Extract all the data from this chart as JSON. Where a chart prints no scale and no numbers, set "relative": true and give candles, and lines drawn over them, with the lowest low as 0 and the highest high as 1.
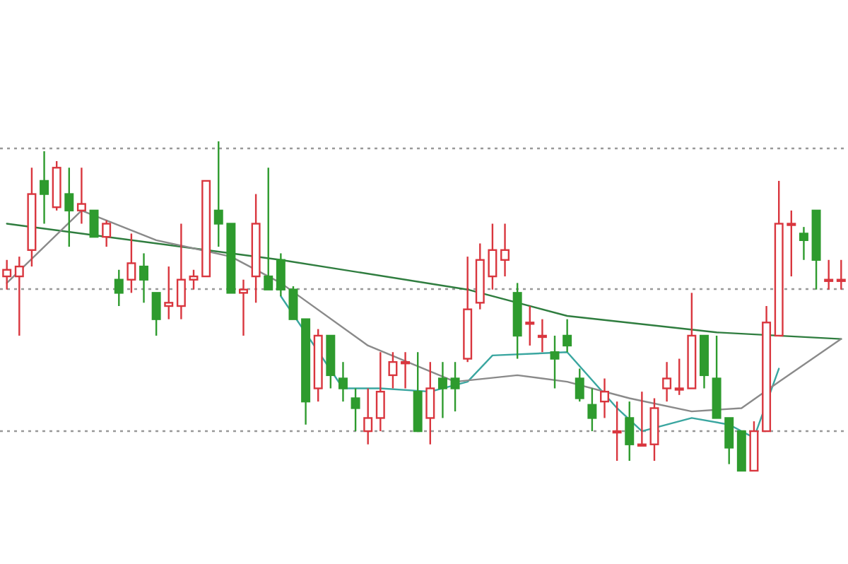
{
  "chart_data": {
    "type": "candlestick",
    "relative": true,
    "grid": true,
    "categories": [
      null,
      null,
      null,
      null,
      null,
      null,
      null,
      null,
      null,
      null,
      null,
      null,
      null,
      null,
      null,
      null,
      null,
      null,
      null,
      null,
      null,
      null,
      null,
      null,
      null,
      null,
      null,
      null,
      null,
      null,
      null,
      null,
      null,
      null,
      null,
      null,
      null,
      null,
      null,
      null,
      null,
      null,
      null,
      null,
      null,
      null,
      null,
      null,
      null,
      null,
      null,
      null,
      null,
      null,
      null,
      null,
      null,
      null,
      null,
      null,
      null,
      null,
      null,
      null,
      null,
      null,
      null,
      null
    ],
    "ohlc": [
      [
        0.59,
        0.64,
        0.55,
        0.61
      ],
      [
        0.59,
        0.65,
        0.41,
        0.62
      ],
      [
        0.67,
        0.92,
        0.62,
        0.84
      ],
      [
        0.88,
        0.97,
        0.75,
        0.84
      ],
      [
        0.8,
        0.94,
        0.79,
        0.92
      ],
      [
        0.84,
        0.92,
        0.68,
        0.79
      ],
      [
        0.79,
        0.92,
        0.75,
        0.81
      ],
      [
        0.79,
        0.79,
        0.71,
        0.71
      ],
      [
        0.71,
        0.76,
        0.68,
        0.75
      ],
      [
        0.58,
        0.61,
        0.5,
        0.54
      ],
      [
        0.58,
        0.72,
        0.54,
        0.63
      ],
      [
        0.62,
        0.66,
        0.51,
        0.58
      ],
      [
        0.54,
        0.54,
        0.41,
        0.46
      ],
      [
        0.5,
        0.62,
        0.46,
        0.51
      ],
      [
        0.5,
        0.75,
        0.46,
        0.58
      ],
      [
        0.58,
        0.61,
        0.55,
        0.59
      ],
      [
        0.59,
        0.88,
        0.59,
        0.88
      ],
      [
        0.79,
        1,
        0.68,
        0.75
      ],
      [
        0.75,
        0.75,
        0.54,
        0.54
      ],
      [
        0.54,
        0.58,
        0.41,
        0.55
      ],
      [
        0.59,
        0.84,
        0.51,
        0.75
      ],
      [
        0.59,
        0.92,
        0.55,
        0.55
      ],
      [
        0.64,
        0.66,
        0.53,
        0.55
      ],
      [
        0.55,
        0.56,
        0.46,
        0.46
      ],
      [
        0.46,
        0.46,
        0.14,
        0.21
      ],
      [
        0.25,
        0.43,
        0.21,
        0.41
      ],
      [
        0.41,
        0.41,
        0.25,
        0.29
      ],
      [
        0.28,
        0.33,
        0.21,
        0.25
      ],
      [
        0.22,
        0.25,
        0.12,
        0.19
      ],
      [
        0.12,
        0.25,
        0.08,
        0.16
      ],
      [
        0.16,
        0.36,
        0.12,
        0.24
      ],
      [
        0.29,
        0.36,
        0.25,
        0.33
      ],
      [
        0.33,
        0.36,
        0.25,
        0.33
      ],
      [
        0.24,
        0.36,
        0.12,
        0.12
      ],
      [
        0.16,
        0.33,
        0.08,
        0.25
      ],
      [
        0.28,
        0.33,
        0.16,
        0.25
      ],
      [
        0.28,
        0.33,
        0.18,
        0.25
      ],
      [
        0.34,
        0.65,
        0.33,
        0.49
      ],
      [
        0.51,
        0.69,
        0.49,
        0.64
      ],
      [
        0.59,
        0.75,
        0.55,
        0.67
      ],
      [
        0.64,
        0.75,
        0.59,
        0.67
      ],
      [
        0.54,
        0.57,
        0.34,
        0.41
      ],
      [
        0.45,
        0.5,
        0.38,
        0.45
      ],
      [
        0.41,
        0.46,
        0.36,
        0.41
      ],
      [
        0.36,
        0.41,
        0.25,
        0.34
      ],
      [
        0.41,
        0.46,
        0.36,
        0.38
      ],
      [
        0.28,
        0.31,
        0.21,
        0.22
      ],
      [
        0.2,
        0.25,
        0.12,
        0.16
      ],
      [
        0.21,
        0.28,
        0.16,
        0.24
      ],
      [
        0.12,
        0.21,
        0.03,
        0.12
      ],
      [
        0.16,
        0.21,
        0.03,
        0.08
      ],
      [
        0.08,
        0.24,
        0.08,
        0.08
      ],
      [
        0.08,
        0.22,
        0.03,
        0.19
      ],
      [
        0.25,
        0.33,
        0.21,
        0.28
      ],
      [
        0.25,
        0.34,
        0.23,
        0.25
      ],
      [
        0.25,
        0.54,
        0.25,
        0.41
      ],
      [
        0.41,
        0.41,
        0.25,
        0.29
      ],
      [
        0.28,
        0.41,
        0.16,
        0.16
      ],
      [
        0.16,
        0.16,
        0.02,
        0.07
      ],
      [
        0.12,
        0.12,
        0,
        0
      ],
      [
        0,
        0.15,
        0,
        0.12
      ],
      [
        0.12,
        0.5,
        0.12,
        0.45
      ],
      [
        0.41,
        0.88,
        0.41,
        0.75
      ],
      [
        0.75,
        0.79,
        0.59,
        0.75
      ],
      [
        0.72,
        0.74,
        0.64,
        0.7
      ],
      [
        0.79,
        0.79,
        0.55,
        0.64
      ],
      [
        0.58,
        0.64,
        0.55,
        0.58
      ],
      [
        0.58,
        0.64,
        0.55,
        0.58
      ]
    ],
    "series": [
      {
        "type": "line",
        "color": "#2f7d3f",
        "values": [
          0.75,
          null,
          null,
          null,
          null,
          null,
          null,
          null,
          null,
          null,
          null,
          null,
          null,
          null,
          null,
          null,
          null,
          null,
          null,
          null,
          null,
          null,
          0.64,
          null,
          null,
          null,
          null,
          null,
          null,
          null,
          null,
          null,
          null,
          null,
          null,
          null,
          null,
          0.55,
          null,
          null,
          null,
          null,
          null,
          null,
          null,
          0.47,
          null,
          null,
          null,
          null,
          null,
          null,
          null,
          null,
          null,
          null,
          null,
          0.42,
          null,
          null,
          null,
          null,
          null,
          null,
          null,
          null,
          null,
          0.4
        ]
      },
      {
        "type": "line",
        "color": "#3aa6a0",
        "values": [
          null,
          null,
          null,
          null,
          null,
          null,
          null,
          null,
          null,
          null,
          null,
          null,
          null,
          null,
          null,
          null,
          null,
          null,
          null,
          null,
          null,
          null,
          0.53,
          null,
          null,
          null,
          null,
          0.25,
          null,
          null,
          0.25,
          null,
          null,
          null,
          0.24,
          null,
          null,
          0.27,
          null,
          0.35,
          null,
          null,
          null,
          null,
          null,
          0.36,
          null,
          null,
          null,
          0.19,
          null,
          0.12,
          null,
          null,
          null,
          0.16,
          null,
          null,
          0.14,
          null,
          0.1,
          null,
          0.31,
          null,
          null,
          null,
          null,
          null
        ]
      },
      {
        "type": "line",
        "color": "#8a8a8a",
        "values": [
          0.57,
          null,
          null,
          null,
          null,
          null,
          0.79,
          null,
          null,
          null,
          null,
          null,
          0.7,
          null,
          null,
          null,
          null,
          null,
          0.65,
          null,
          null,
          null,
          0.57,
          null,
          null,
          null,
          null,
          null,
          null,
          0.38,
          null,
          null,
          null,
          null,
          null,
          null,
          0.27,
          null,
          null,
          null,
          null,
          0.29,
          null,
          null,
          null,
          0.27,
          null,
          null,
          null,
          null,
          0.22,
          null,
          null,
          null,
          null,
          0.18,
          null,
          null,
          null,
          0.19,
          null,
          null,
          0.27,
          null,
          null,
          null,
          null,
          0.4
        ]
      }
    ]
  }
}
